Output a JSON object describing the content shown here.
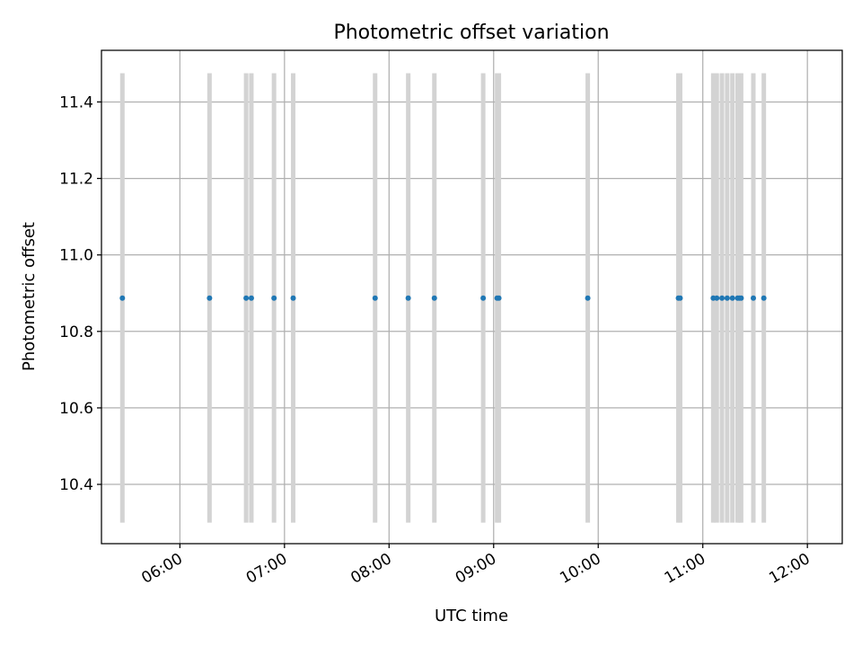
{
  "chart_data": {
    "type": "scatter",
    "title": "Photometric offset variation",
    "xlabel": "UTC time",
    "ylabel": "Photometric offset",
    "x_axis_type": "time",
    "xlim": [
      "05:15",
      "12:20"
    ],
    "ylim": [
      10.245,
      11.535
    ],
    "x_ticks": [
      "06:00",
      "07:00",
      "08:00",
      "09:00",
      "10:00",
      "11:00",
      "12:00"
    ],
    "y_ticks": [
      "10.4",
      "10.6",
      "10.8",
      "11.0",
      "11.2",
      "11.4"
    ],
    "grid": true,
    "marker_color": "#1f77b4",
    "errorbar_color": "#d3d3d3",
    "errorbar_range": [
      10.3,
      11.475
    ],
    "series": [
      {
        "x": [
          "05:27",
          "06:17",
          "06:38",
          "06:41",
          "06:54",
          "07:05",
          "07:52",
          "08:11",
          "08:26",
          "08:54",
          "09:02",
          "09:03",
          "09:54",
          "10:46",
          "10:47",
          "11:06",
          "11:08",
          "11:11",
          "11:14",
          "11:17",
          "11:20",
          "11:21",
          "11:22",
          "11:29",
          "11:35"
        ],
        "y": [
          10.887,
          10.887,
          10.887,
          10.887,
          10.887,
          10.887,
          10.887,
          10.887,
          10.887,
          10.887,
          10.887,
          10.887,
          10.887,
          10.887,
          10.887,
          10.887,
          10.887,
          10.887,
          10.887,
          10.887,
          10.887,
          10.887,
          10.887,
          10.887,
          10.887
        ]
      }
    ]
  }
}
